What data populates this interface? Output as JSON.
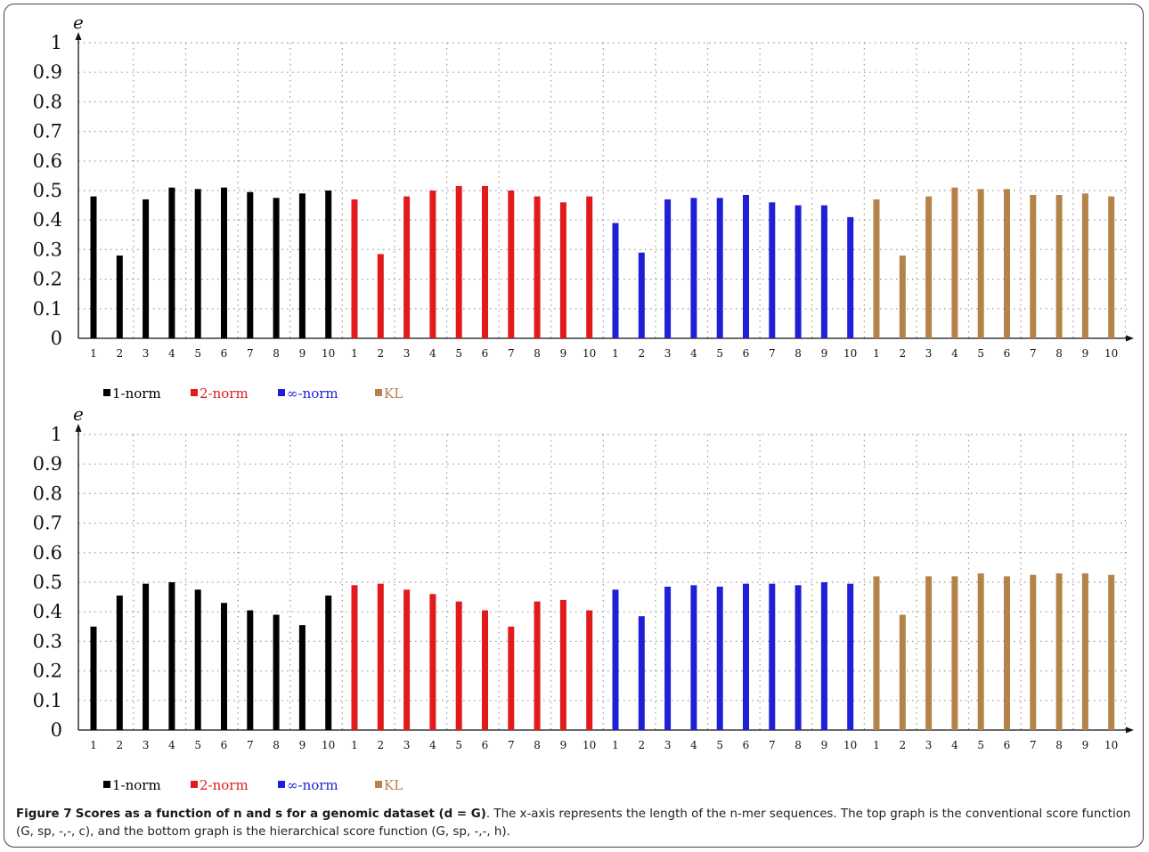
{
  "caption": {
    "label": "Figure 7",
    "title": "Scores as a function of n and s for a genomic dataset (d = G)",
    "body": ". The x-axis represents the length of the n-mer sequences. The top graph is the conventional score function (G, sp, -,-, c), and the bottom graph is the hierarchical score function (G, sp, -,-, h)."
  },
  "chart_data": [
    {
      "type": "bar",
      "ylabel": "e",
      "ylim": [
        0,
        1
      ],
      "yticks": [
        "0",
        "0.1",
        "0.2",
        "0.3",
        "0.4",
        "0.5",
        "0.6",
        "0.7",
        "0.8",
        "0.9",
        "1"
      ],
      "categories": [
        "1",
        "2",
        "3",
        "4",
        "5",
        "6",
        "7",
        "8",
        "9",
        "10"
      ],
      "grid": true,
      "legend_position": "bottom-left",
      "series": [
        {
          "name": "1-norm",
          "color": "#000000",
          "values": [
            0.48,
            0.28,
            0.47,
            0.51,
            0.505,
            0.51,
            0.495,
            0.475,
            0.49,
            0.5
          ]
        },
        {
          "name": "2-norm",
          "color": "#e31a1c",
          "values": [
            0.47,
            0.285,
            0.48,
            0.5,
            0.515,
            0.515,
            0.5,
            0.48,
            0.46,
            0.48
          ]
        },
        {
          "name": "∞-norm",
          "color": "#1f1fd6",
          "values": [
            0.39,
            0.29,
            0.47,
            0.475,
            0.475,
            0.485,
            0.46,
            0.45,
            0.45,
            0.41
          ]
        },
        {
          "name": "KL",
          "color": "#b5834a",
          "values": [
            0.47,
            0.28,
            0.48,
            0.51,
            0.505,
            0.505,
            0.485,
            0.485,
            0.49,
            0.48
          ]
        }
      ]
    },
    {
      "type": "bar",
      "ylabel": "e",
      "ylim": [
        0,
        1
      ],
      "yticks": [
        "0",
        "0.1",
        "0.2",
        "0.3",
        "0.4",
        "0.5",
        "0.6",
        "0.7",
        "0.8",
        "0.9",
        "1"
      ],
      "categories": [
        "1",
        "2",
        "3",
        "4",
        "5",
        "6",
        "7",
        "8",
        "9",
        "10"
      ],
      "grid": true,
      "legend_position": "bottom-left",
      "series": [
        {
          "name": "1-norm",
          "color": "#000000",
          "values": [
            0.35,
            0.455,
            0.495,
            0.5,
            0.475,
            0.43,
            0.405,
            0.39,
            0.355,
            0.455
          ]
        },
        {
          "name": "2-norm",
          "color": "#e31a1c",
          "values": [
            0.49,
            0.495,
            0.475,
            0.46,
            0.435,
            0.405,
            0.35,
            0.435,
            0.44,
            0.405
          ]
        },
        {
          "name": "∞-norm",
          "color": "#1f1fd6",
          "values": [
            0.475,
            0.385,
            0.485,
            0.49,
            0.485,
            0.495,
            0.495,
            0.49,
            0.5,
            0.495
          ]
        },
        {
          "name": "KL",
          "color": "#b5834a",
          "values": [
            0.52,
            0.39,
            0.52,
            0.52,
            0.53,
            0.52,
            0.525,
            0.53,
            0.53,
            0.525
          ]
        }
      ]
    }
  ]
}
